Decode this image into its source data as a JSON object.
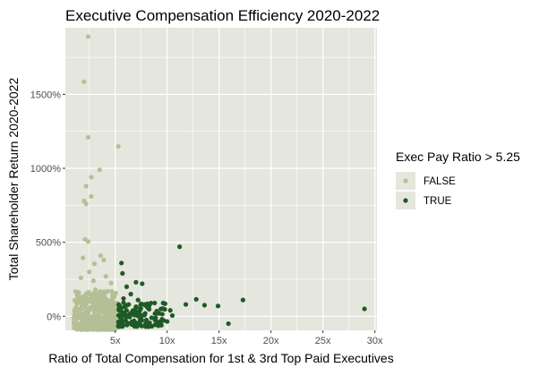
{
  "chart_data": {
    "type": "scatter",
    "title": "Executive Compensation Efficiency 2020-2022",
    "xlabel": "Ratio of Total Compensation for 1st & 3rd Top Paid Executives",
    "ylabel": "Total Shareholder Return 2020-2022",
    "xlim": [
      0.2,
      30.2
    ],
    "ylim": [
      -95,
      1950
    ],
    "x_ticks": [
      5,
      10,
      15,
      20,
      25,
      30
    ],
    "x_tick_labels": [
      "5x",
      "10x",
      "15x",
      "20x",
      "25x",
      "30x"
    ],
    "y_ticks": [
      0,
      500,
      1000,
      1500
    ],
    "y_tick_labels": [
      "0%",
      "500%",
      "1000%",
      "1500%"
    ],
    "grid": true,
    "legend": {
      "title": "Exec Pay Ratio > 5.25",
      "placement": "right",
      "entries": [
        "FALSE",
        "TRUE"
      ]
    },
    "colors": {
      "FALSE": "#b5bf95",
      "TRUE": "#1e5a26",
      "panel_background": "#e5e6dd",
      "grid": "#ffffff"
    },
    "series": [
      {
        "name": "FALSE",
        "points": [
          [
            2.4,
            1890
          ],
          [
            2.0,
            1585
          ],
          [
            2.4,
            1210
          ],
          [
            5.3,
            1148
          ],
          [
            3.5,
            990
          ],
          [
            2.7,
            940
          ],
          [
            2.2,
            880
          ],
          [
            2.7,
            810
          ],
          [
            2.0,
            780
          ],
          [
            2.2,
            760
          ],
          [
            2.1,
            520
          ],
          [
            2.4,
            505
          ],
          [
            1.9,
            395
          ],
          [
            3.0,
            355
          ],
          [
            3.6,
            410
          ],
          [
            3.9,
            380
          ],
          [
            2.5,
            300
          ],
          [
            1.7,
            260
          ],
          [
            4.1,
            270
          ],
          [
            2.9,
            240
          ],
          [
            4.6,
            225
          ],
          [
            3.1,
            180
          ],
          [
            1.5,
            160
          ],
          [
            2.2,
            150
          ],
          [
            3.8,
            140
          ],
          [
            4.9,
            130
          ],
          [
            2.6,
            120
          ],
          [
            1.2,
            100
          ],
          [
            3.3,
            95
          ],
          [
            4.4,
            85
          ],
          [
            1.8,
            70
          ],
          [
            2.9,
            60
          ],
          [
            3.6,
            50
          ],
          [
            4.8,
            45
          ],
          [
            1.4,
            35
          ],
          [
            2.4,
            25
          ],
          [
            3.0,
            15
          ],
          [
            4.2,
            10
          ],
          [
            5.0,
            5
          ],
          [
            1.6,
            0
          ],
          [
            2.7,
            -5
          ],
          [
            3.5,
            -10
          ],
          [
            4.6,
            -15
          ],
          [
            1.9,
            -25
          ],
          [
            2.3,
            -35
          ],
          [
            3.2,
            -40
          ],
          [
            4.0,
            -45
          ],
          [
            5.1,
            -50
          ],
          [
            1.3,
            -60
          ],
          [
            2.8,
            -70
          ],
          [
            3.9,
            -75
          ],
          [
            4.5,
            -80
          ],
          [
            1.7,
            -85
          ],
          [
            2.5,
            45
          ],
          [
            3.4,
            65
          ],
          [
            4.3,
            75
          ],
          [
            5.2,
            90
          ],
          [
            2.1,
            110
          ],
          [
            3.7,
            30
          ],
          [
            4.7,
            20
          ]
        ]
      },
      {
        "name": "TRUE",
        "points": [
          [
            11.2,
            470
          ],
          [
            5.6,
            360
          ],
          [
            5.7,
            290
          ],
          [
            7.0,
            230
          ],
          [
            7.6,
            220
          ],
          [
            17.3,
            110
          ],
          [
            12.8,
            115
          ],
          [
            11.8,
            80
          ],
          [
            13.6,
            75
          ],
          [
            14.9,
            70
          ],
          [
            29.0,
            50
          ],
          [
            15.9,
            -50
          ],
          [
            6.1,
            200
          ],
          [
            6.5,
            150
          ],
          [
            8.8,
            90
          ],
          [
            9.8,
            85
          ],
          [
            10.3,
            40
          ],
          [
            8.1,
            60
          ],
          [
            9.2,
            20
          ],
          [
            7.2,
            110
          ],
          [
            6.8,
            30
          ],
          [
            5.8,
            120
          ],
          [
            6.3,
            80
          ],
          [
            7.8,
            10
          ],
          [
            8.5,
            -10
          ],
          [
            9.5,
            -20
          ],
          [
            10.5,
            5
          ],
          [
            6.0,
            -30
          ],
          [
            6.7,
            -40
          ],
          [
            7.4,
            -55
          ],
          [
            8.3,
            -45
          ],
          [
            5.5,
            55
          ],
          [
            5.9,
            15
          ],
          [
            6.4,
            -5
          ],
          [
            9.0,
            35
          ],
          [
            10.0,
            -35
          ],
          [
            7.0,
            65
          ],
          [
            5.4,
            -60
          ],
          [
            6.9,
            45
          ],
          [
            8.0,
            -25
          ]
        ]
      }
    ]
  }
}
